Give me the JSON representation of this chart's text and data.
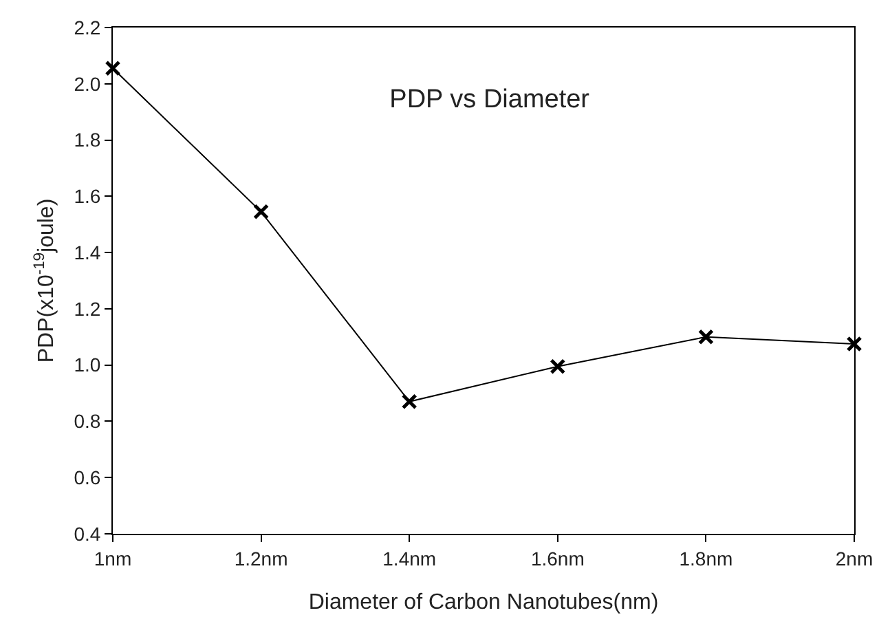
{
  "chart_data": {
    "type": "line",
    "title": "PDP vs Diameter",
    "xlabel": "Diameter of Carbon Nanotubes(nm)",
    "ylabel": "PDP(x10$^{-19}$joule)",
    "categories": [
      "1nm",
      "1.2nm",
      "1.4nm",
      "1.6nm",
      "1.8nm",
      "2nm"
    ],
    "series": [
      {
        "color": "#000000",
        "values": [
          2.055,
          1.545,
          0.87,
          0.995,
          1.1,
          1.075
        ]
      }
    ],
    "ylim": [
      0.4,
      2.2
    ],
    "yticks": [
      0.4,
      0.6,
      0.8,
      {
        "value": 1.0,
        "label": "1.0"
      },
      1.2,
      1.4,
      1.6,
      1.8,
      {
        "value": 2.0,
        "label": "2.0"
      },
      2.2
    ],
    "marker": "cross",
    "line_style": "solid"
  }
}
